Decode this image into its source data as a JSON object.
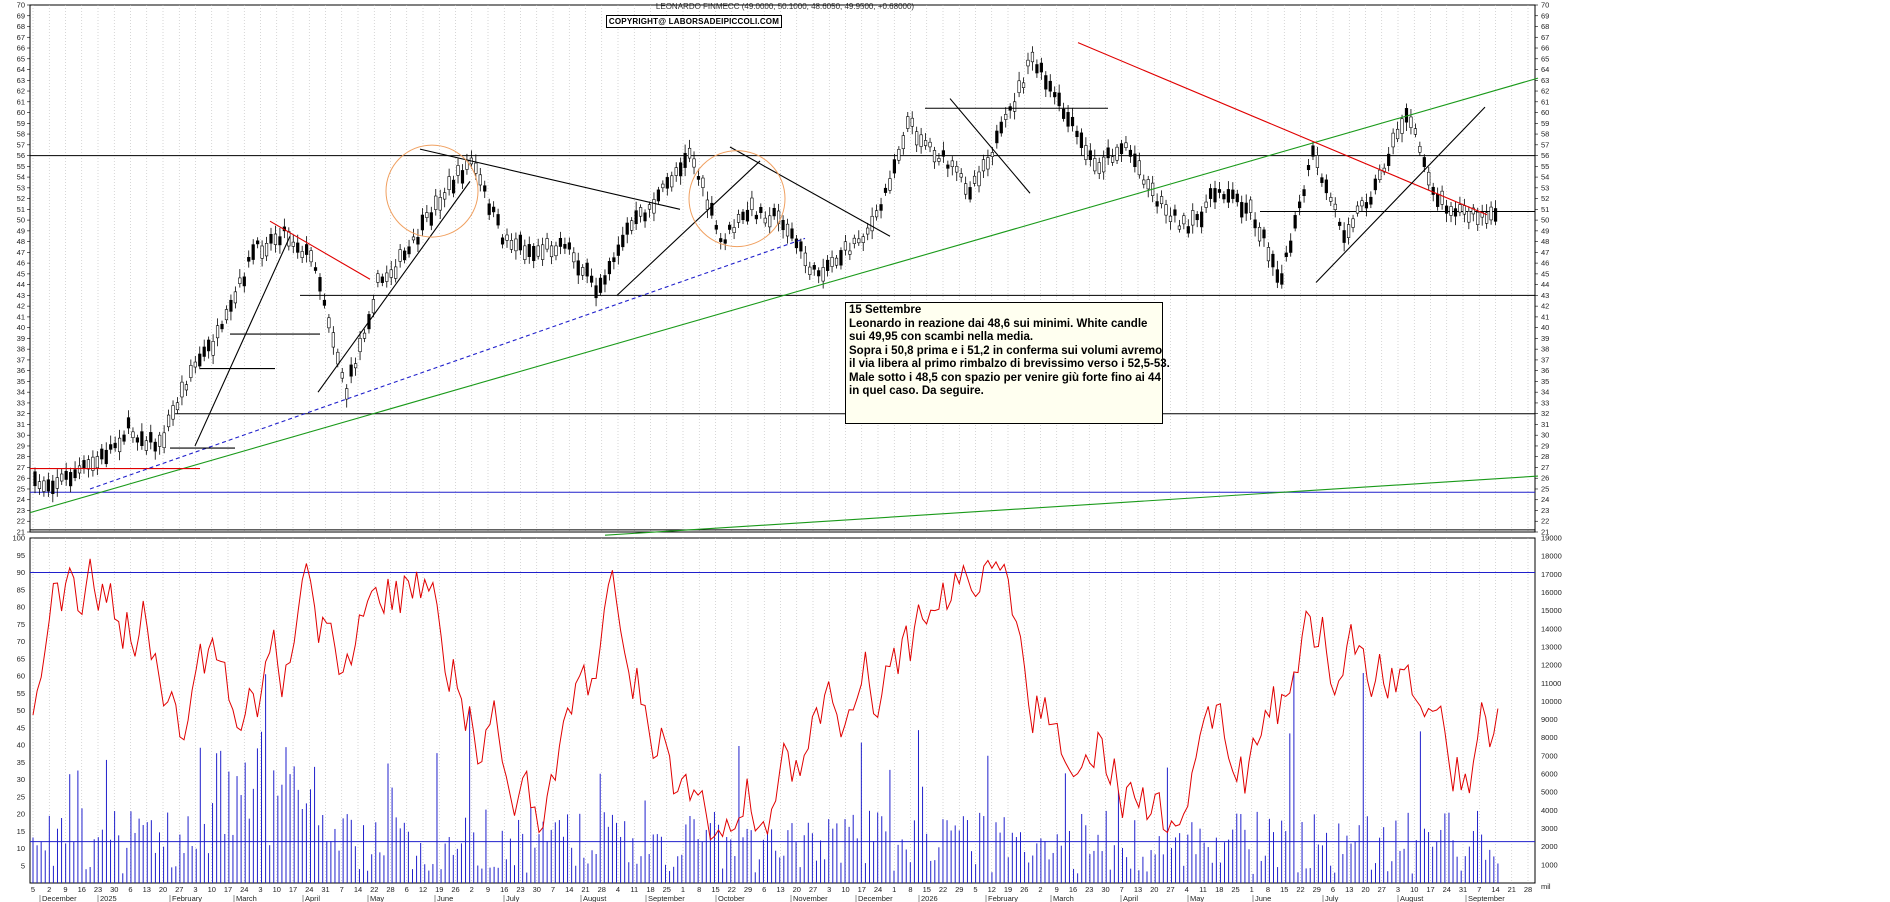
{
  "header": {
    "title": "LEONARDO FINMECC (49.0000, 50.1000, 48.6050, 49.9500, +0.68000)",
    "copyright": "COPYRIGHT@ LABORSADEIPICCOLI.COM"
  },
  "annotation": {
    "lines": [
      "15 Settembre",
      "Leonardo in reazione dai 48,6 sui minimi. White candle",
      "sui 49,95 con scambi nella media.",
      "Sopra i 50,8 prima e i 51,2 in conferma sui volumi avremo",
      "il via libera al primo rimbalzo di brevissimo verso i 52,5-53.",
      "Male sotto i 48,5 con spazio per venire giù forte fino ai 44",
      "in quel caso. Da seguire."
    ]
  },
  "chart_data": [
    {
      "type": "candlestick",
      "title": "LEONARDO FINMECC (49.0000, 50.1000, 48.6050, 49.9500, +0.68000)",
      "ylim": [
        21,
        70
      ],
      "y_ticks": [
        21,
        22,
        23,
        24,
        25,
        26,
        27,
        28,
        29,
        30,
        31,
        32,
        33,
        34,
        35,
        36,
        37,
        38,
        39,
        40,
        41,
        42,
        43,
        44,
        45,
        46,
        47,
        48,
        49,
        50,
        51,
        52,
        53,
        54,
        55,
        56,
        57,
        58,
        59,
        60,
        61,
        62,
        63,
        64,
        65,
        66,
        67,
        68,
        69,
        70
      ],
      "last_bar": {
        "open": 49.0,
        "high": 50.1,
        "low": 48.605,
        "close": 49.95,
        "change": 0.68
      },
      "close_path": [
        {
          "x": "Nov 2024",
          "y": 25.3
        },
        {
          "x": "Dec 2024",
          "y": 26.0
        },
        {
          "x": "Jan 2025",
          "y": 27.5
        },
        {
          "x": "early Feb 2025",
          "y": 30.5
        },
        {
          "x": "mid Feb 2025",
          "y": 29.0
        },
        {
          "x": "late Feb 2025",
          "y": 36.0
        },
        {
          "x": "early Mar 2025",
          "y": 39.5
        },
        {
          "x": "Mar 2025",
          "y": 47.0
        },
        {
          "x": "late Mar 2025",
          "y": 49.0
        },
        {
          "x": "Apr 2025",
          "y": 46.0
        },
        {
          "x": "Apr 2025 low",
          "y": 34.0
        },
        {
          "x": "late Apr 2025",
          "y": 44.0
        },
        {
          "x": "May 2025",
          "y": 47.0
        },
        {
          "x": "late May 2025",
          "y": 52.0
        },
        {
          "x": "early Jun 2025",
          "y": 55.5
        },
        {
          "x": "mid Jun 2025",
          "y": 48.5
        },
        {
          "x": "Jul 2025",
          "y": 47.0
        },
        {
          "x": "Aug 2025",
          "y": 48.0
        },
        {
          "x": "mid Aug 2025",
          "y": 43.5
        },
        {
          "x": "Sep 2025",
          "y": 49.0
        },
        {
          "x": "late Sep 2025",
          "y": 52.0
        },
        {
          "x": "early Oct 2025",
          "y": 56.5
        },
        {
          "x": "mid Oct 2025",
          "y": 48.0
        },
        {
          "x": "late Oct 2025",
          "y": 51.0
        },
        {
          "x": "Nov 2025",
          "y": 50.0
        },
        {
          "x": "late Nov 2025",
          "y": 45.0
        },
        {
          "x": "Dec 2025",
          "y": 47.0
        },
        {
          "x": "late Dec 2025",
          "y": 50.0
        },
        {
          "x": "early Jan 2026",
          "y": 59.0
        },
        {
          "x": "late Jan 2026",
          "y": 56.0
        },
        {
          "x": "Feb 2026",
          "y": 53.0
        },
        {
          "x": "late Feb 2026",
          "y": 58.0
        },
        {
          "x": "mid Mar 2026",
          "y": 65.0
        },
        {
          "x": "late Mar 2026",
          "y": 60.0
        },
        {
          "x": "early Apr 2026",
          "y": 55.0
        },
        {
          "x": "mid Apr 2026",
          "y": 57.0
        },
        {
          "x": "late Apr 2026",
          "y": 52.0
        },
        {
          "x": "May 2026",
          "y": 49.0
        },
        {
          "x": "late May 2026",
          "y": 53.0
        },
        {
          "x": "Jun 2026",
          "y": 51.0
        },
        {
          "x": "late Jun 2026",
          "y": 44.5
        },
        {
          "x": "early Jul 2026",
          "y": 56.0
        },
        {
          "x": "mid Jul 2026",
          "y": 49.0
        },
        {
          "x": "late Jul 2026",
          "y": 53.0
        },
        {
          "x": "mid Aug 2026",
          "y": 60.0
        },
        {
          "x": "late Aug 2026",
          "y": 52.0
        },
        {
          "x": "early Sep 2026",
          "y": 50.5
        },
        {
          "x": "mid Sep 2026",
          "y": 49.95
        }
      ],
      "horizontal_levels": [
        56,
        50.8,
        43,
        32,
        24.7
      ],
      "colors": {
        "resistance_downtrend": "#e00000",
        "long_uptrend": "#1a9a1a",
        "support_dashed": "#2020cc",
        "lines": "#000000",
        "circles": "#f0a060"
      }
    },
    {
      "type": "line+bar",
      "left_ylim": [
        0,
        100
      ],
      "left_ticks": [
        5,
        10,
        15,
        20,
        25,
        30,
        35,
        40,
        45,
        50,
        55,
        60,
        65,
        70,
        75,
        80,
        85,
        90,
        95,
        100
      ],
      "right_ylim": [
        0,
        19000
      ],
      "right_ticks": [
        1000,
        2000,
        3000,
        4000,
        5000,
        6000,
        7000,
        8000,
        9000,
        10000,
        11000,
        12000,
        13000,
        14000,
        15000,
        16000,
        17000,
        18000,
        19000
      ],
      "right_unit": "mil",
      "levels": [
        90,
        12
      ],
      "colors": {
        "oscillator": "#e00000",
        "volume": "#2020cc",
        "level_lines": "#2020cc"
      }
    }
  ],
  "x_axis": {
    "day_labels": [
      "5",
      "2",
      "9",
      "16",
      "23",
      "30",
      "6",
      "13",
      "20",
      "27",
      "3",
      "10",
      "17",
      "24",
      "3",
      "10",
      "17",
      "24",
      "31",
      "7",
      "14",
      "22",
      "28",
      "6",
      "12",
      "19",
      "26",
      "2",
      "9",
      "16",
      "23",
      "30",
      "7",
      "14",
      "21",
      "28",
      "4",
      "11",
      "18",
      "25",
      "1",
      "8",
      "15",
      "22",
      "29",
      "6",
      "13",
      "20",
      "27",
      "3",
      "10",
      "17",
      "24",
      "1",
      "8",
      "15",
      "22",
      "29",
      "5",
      "12",
      "19",
      "26",
      "2",
      "9",
      "16",
      "23",
      "30",
      "7",
      "13",
      "20",
      "27",
      "4",
      "11",
      "18",
      "25",
      "1",
      "8",
      "15",
      "22",
      "29",
      "6",
      "13",
      "20",
      "27",
      "3",
      "10",
      "17",
      "24",
      "31",
      "7",
      "14",
      "21",
      "28"
    ],
    "month_labels": [
      "December",
      "2025",
      "February",
      "March",
      "April",
      "May",
      "June",
      "July",
      "August",
      "September",
      "October",
      "November",
      "December",
      "2026",
      "February",
      "March",
      "April",
      "May",
      "June",
      "July",
      "August",
      "September"
    ]
  }
}
